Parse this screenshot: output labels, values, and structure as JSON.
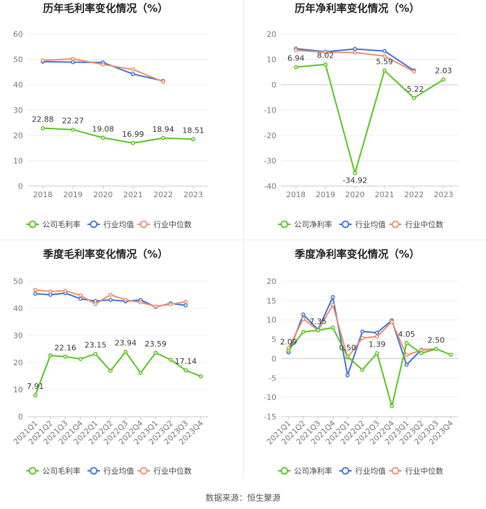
{
  "source": "数据来源：恒生聚源",
  "legend": {
    "gross": [
      "公司毛利率",
      "行业均值",
      "行业中位数"
    ],
    "net": [
      "公司净利率",
      "行业均值",
      "行业中位数"
    ]
  },
  "colors": {
    "company": "#52c41a",
    "mean": "#3b6fd6",
    "median": "#f08c6b"
  },
  "chart_data": [
    {
      "id": "annual-gross",
      "type": "line",
      "title": "历年毛利率变化情况（%）",
      "categories": [
        "2018",
        "2019",
        "2020",
        "2021",
        "2022",
        "2023"
      ],
      "ylim": [
        0,
        60
      ],
      "yticks": [
        0,
        10,
        20,
        30,
        40,
        50,
        60
      ],
      "series": [
        {
          "name": "公司毛利率",
          "role": "company",
          "values": [
            22.88,
            22.27,
            19.08,
            16.99,
            18.94,
            18.51
          ]
        },
        {
          "name": "行业均值",
          "role": "mean",
          "values": [
            49.1,
            48.9,
            48.8,
            44.2,
            41.5,
            null
          ]
        },
        {
          "name": "行业中位数",
          "role": "median",
          "values": [
            49.6,
            50.2,
            48.0,
            46.0,
            41.2,
            null
          ]
        }
      ],
      "labels": [
        {
          "index": 0,
          "text": "22.88"
        },
        {
          "index": 1,
          "text": "22.27"
        },
        {
          "index": 2,
          "text": "19.08"
        },
        {
          "index": 3,
          "text": "16.99"
        },
        {
          "index": 4,
          "text": "18.94"
        },
        {
          "index": 5,
          "text": "18.51"
        }
      ]
    },
    {
      "id": "annual-net",
      "type": "line",
      "title": "历年净利率变化情况（%）",
      "categories": [
        "2018",
        "2019",
        "2020",
        "2021",
        "2022",
        "2023"
      ],
      "ylim": [
        -40,
        20
      ],
      "yticks": [
        -40,
        -30,
        -20,
        -10,
        0,
        10,
        20
      ],
      "series": [
        {
          "name": "公司净利率",
          "role": "company",
          "values": [
            6.94,
            8.02,
            -34.92,
            5.59,
            -5.22,
            2.03
          ]
        },
        {
          "name": "行业均值",
          "role": "mean",
          "values": [
            14.2,
            13.0,
            14.1,
            13.3,
            5.6,
            null
          ]
        },
        {
          "name": "行业中位数",
          "role": "median",
          "values": [
            13.6,
            12.8,
            12.7,
            11.3,
            5.2,
            null
          ]
        }
      ],
      "labels": [
        {
          "index": 0,
          "text": "6.94"
        },
        {
          "index": 1,
          "text": "8.02"
        },
        {
          "index": 2,
          "text": "-34.92"
        },
        {
          "index": 3,
          "text": "5.59"
        },
        {
          "index": 4,
          "text": "-5.22"
        },
        {
          "index": 5,
          "text": "2.03"
        }
      ]
    },
    {
      "id": "quarterly-gross",
      "type": "line",
      "title": "季度毛利率变化情况（%）",
      "categories": [
        "2021Q1",
        "2021Q2",
        "2021Q3",
        "2021Q4",
        "2022Q1",
        "2022Q2",
        "2022Q3",
        "2022Q4",
        "2023Q1",
        "2023Q2",
        "2023Q3",
        "2023Q4"
      ],
      "ylim": [
        0,
        50
      ],
      "yticks": [
        0,
        10,
        20,
        30,
        40,
        50
      ],
      "series": [
        {
          "name": "公司毛利率",
          "role": "company",
          "values": [
            7.91,
            22.6,
            22.16,
            21.3,
            23.15,
            16.9,
            23.94,
            16.1,
            23.59,
            21.0,
            17.14,
            14.9
          ]
        },
        {
          "name": "行业均值",
          "role": "mean",
          "values": [
            45.4,
            45.0,
            45.6,
            43.5,
            42.7,
            43.1,
            42.6,
            43.1,
            40.5,
            41.8,
            41.1,
            null
          ]
        },
        {
          "name": "行业中位数",
          "role": "median",
          "values": [
            46.8,
            46.2,
            46.5,
            44.8,
            41.6,
            45.0,
            43.1,
            42.2,
            40.7,
            41.5,
            42.4,
            null
          ]
        }
      ],
      "labels": [
        {
          "index": 0,
          "text": "7.91"
        },
        {
          "index": 2,
          "text": "22.16"
        },
        {
          "index": 4,
          "text": "23.15"
        },
        {
          "index": 6,
          "text": "23.94"
        },
        {
          "index": 8,
          "text": "23.59"
        },
        {
          "index": 10,
          "text": "17.14"
        }
      ]
    },
    {
      "id": "quarterly-net",
      "type": "line",
      "title": "季度净利率变化情况（%）",
      "categories": [
        "2021Q1",
        "2021Q2",
        "2021Q3",
        "2021Q4",
        "2022Q1",
        "2022Q2",
        "2022Q3",
        "2022Q4",
        "2023Q1",
        "2023Q2",
        "2023Q3",
        "2023Q4"
      ],
      "ylim": [
        -15,
        20
      ],
      "yticks": [
        -15,
        -10,
        -5,
        0,
        5,
        10,
        15,
        20
      ],
      "series": [
        {
          "name": "公司净利率",
          "role": "company",
          "values": [
            2.09,
            6.9,
            7.35,
            8.0,
            0.5,
            -2.9,
            1.39,
            -12.3,
            4.05,
            1.4,
            2.5,
            1.0
          ]
        },
        {
          "name": "行业均值",
          "role": "mean",
          "values": [
            1.6,
            11.4,
            7.5,
            15.9,
            -4.3,
            7.0,
            6.7,
            9.9,
            -1.6,
            2.3,
            2.5,
            null
          ]
        },
        {
          "name": "行业中位数",
          "role": "median",
          "values": [
            2.7,
            10.3,
            7.3,
            13.9,
            0.3,
            5.3,
            5.7,
            9.5,
            0.9,
            2.2,
            2.5,
            null
          ]
        }
      ],
      "labels": [
        {
          "index": 0,
          "text": "2.09"
        },
        {
          "index": 2,
          "text": "7.35"
        },
        {
          "index": 4,
          "text": "0.50"
        },
        {
          "index": 6,
          "text": "1.39"
        },
        {
          "index": 8,
          "text": "4.05"
        },
        {
          "index": 10,
          "text": "2.50"
        }
      ]
    }
  ]
}
